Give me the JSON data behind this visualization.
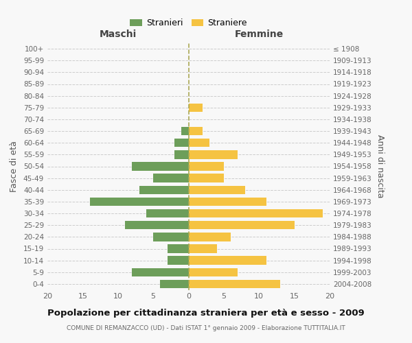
{
  "age_groups": [
    "0-4",
    "5-9",
    "10-14",
    "15-19",
    "20-24",
    "25-29",
    "30-34",
    "35-39",
    "40-44",
    "45-49",
    "50-54",
    "55-59",
    "60-64",
    "65-69",
    "70-74",
    "75-79",
    "80-84",
    "85-89",
    "90-94",
    "95-99",
    "100+"
  ],
  "birth_years": [
    "2004-2008",
    "1999-2003",
    "1994-1998",
    "1989-1993",
    "1984-1988",
    "1979-1983",
    "1974-1978",
    "1969-1973",
    "1964-1968",
    "1959-1963",
    "1954-1958",
    "1949-1953",
    "1944-1948",
    "1939-1943",
    "1934-1938",
    "1929-1933",
    "1924-1928",
    "1919-1923",
    "1914-1918",
    "1909-1913",
    "≤ 1908"
  ],
  "males": [
    4,
    8,
    3,
    3,
    5,
    9,
    6,
    14,
    7,
    5,
    8,
    2,
    2,
    1,
    0,
    0,
    0,
    0,
    0,
    0,
    0
  ],
  "females": [
    13,
    7,
    11,
    4,
    6,
    15,
    19,
    11,
    8,
    5,
    5,
    7,
    3,
    2,
    0,
    2,
    0,
    0,
    0,
    0,
    0
  ],
  "male_color": "#6d9e5a",
  "female_color": "#f5c342",
  "background_color": "#f8f8f8",
  "grid_color": "#cccccc",
  "title": "Popolazione per cittadinanza straniera per età e sesso - 2009",
  "subtitle": "COMUNE DI REMANZACCO (UD) - Dati ISTAT 1° gennaio 2009 - Elaborazione TUTTITALIA.IT",
  "legend_stranieri": "Stranieri",
  "legend_straniere": "Straniere",
  "label_maschi": "Maschi",
  "label_femmine": "Femmine",
  "ylabel_left": "Fasce di età",
  "ylabel_right": "Anni di nascita",
  "xlim": 20,
  "dashed_line_color": "#aaa855"
}
